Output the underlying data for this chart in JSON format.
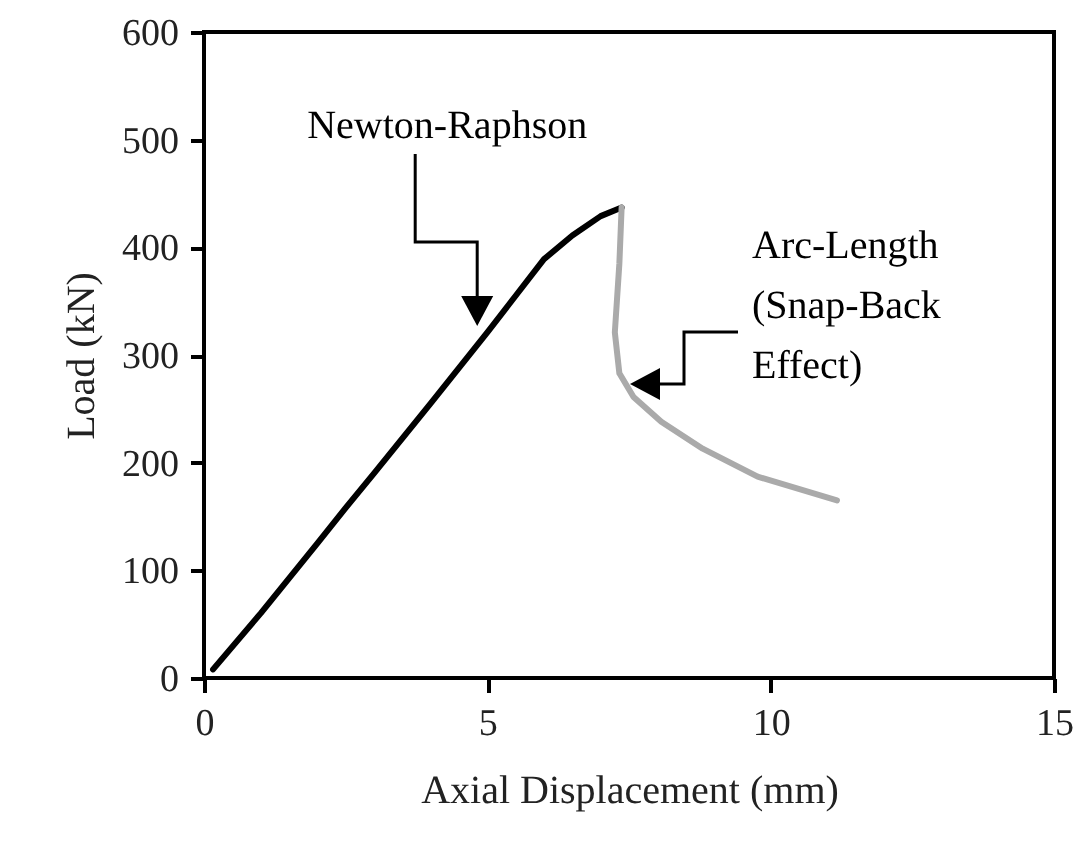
{
  "chart_data": {
    "type": "line",
    "xlabel": "Axial Displacement (mm)",
    "ylabel": "Load (kN)",
    "xlim": [
      0,
      15
    ],
    "ylim": [
      0,
      600
    ],
    "xticks": [
      0,
      5,
      10,
      15
    ],
    "yticks": [
      0,
      100,
      200,
      300,
      400,
      500,
      600
    ],
    "series": [
      {
        "color": "#000000",
        "x": [
          0.16,
          1,
          2,
          2.5,
          3,
          4,
          5,
          5.5,
          6,
          6.5,
          7,
          7.37
        ],
        "values": [
          8,
          60,
          125,
          158,
          190,
          255,
          321,
          355,
          389,
          411,
          429,
          437
        ]
      },
      {
        "color": "#aaaaaa",
        "x": [
          7.37,
          7.33,
          7.25,
          7.33,
          7.58,
          8.07,
          8.8,
          9.77,
          11.17
        ],
        "values": [
          437,
          385,
          321,
          283,
          261,
          238,
          213,
          187,
          165
        ]
      }
    ],
    "annotations": [
      "Newton-Raphson",
      "Arc-Length\n(Snap-Back\nEffect)"
    ]
  }
}
